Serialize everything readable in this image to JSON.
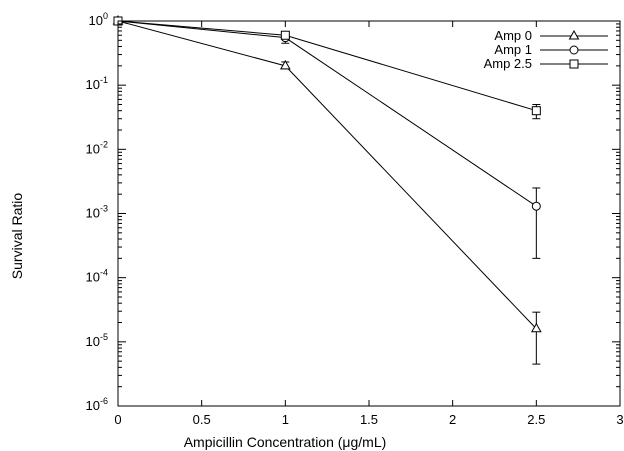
{
  "chart_data": {
    "type": "line",
    "title": "",
    "xlabel": "Ampicillin Concentration (μg/mL)",
    "ylabel": "Survival Ratio",
    "xlim": [
      0,
      3
    ],
    "ylim": [
      1e-06,
      1
    ],
    "yscale": "log",
    "x_ticks": [
      0,
      0.5,
      1,
      1.5,
      2,
      2.5,
      3
    ],
    "x_tick_labels": [
      "0",
      "0.5",
      "1",
      "1.5",
      "2",
      "2.5",
      "3"
    ],
    "y_ticks": [
      1,
      0.1,
      0.01,
      0.001,
      0.0001,
      1e-05,
      1e-06
    ],
    "y_tick_labels": [
      {
        "base": "10",
        "exp": "0"
      },
      {
        "base": "10",
        "exp": "-1"
      },
      {
        "base": "10",
        "exp": "-2"
      },
      {
        "base": "10",
        "exp": "-3"
      },
      {
        "base": "10",
        "exp": "-4"
      },
      {
        "base": "10",
        "exp": "-5"
      },
      {
        "base": "10",
        "exp": "-6"
      }
    ],
    "grid": false,
    "legend_position": "top-right",
    "series": [
      {
        "name": "Amp 0",
        "marker": "triangle",
        "x": [
          0,
          1,
          2.5
        ],
        "y": [
          1,
          0.2,
          1.6e-05
        ],
        "yerr_low": [
          1,
          0.18,
          4.5e-06
        ],
        "yerr_high": [
          1,
          0.23,
          2.9e-05
        ]
      },
      {
        "name": "Amp 1",
        "marker": "circle",
        "x": [
          0,
          1,
          2.5
        ],
        "y": [
          1,
          0.55,
          0.0013
        ],
        "yerr_low": [
          1,
          0.45,
          0.0002
        ],
        "yerr_high": [
          1,
          0.66,
          0.0025
        ]
      },
      {
        "name": "Amp 2.5",
        "marker": "square",
        "x": [
          0,
          1,
          2.5
        ],
        "y": [
          1,
          0.6,
          0.04
        ],
        "yerr_low": [
          1,
          0.55,
          0.03
        ],
        "yerr_high": [
          1,
          0.66,
          0.05
        ]
      }
    ]
  }
}
